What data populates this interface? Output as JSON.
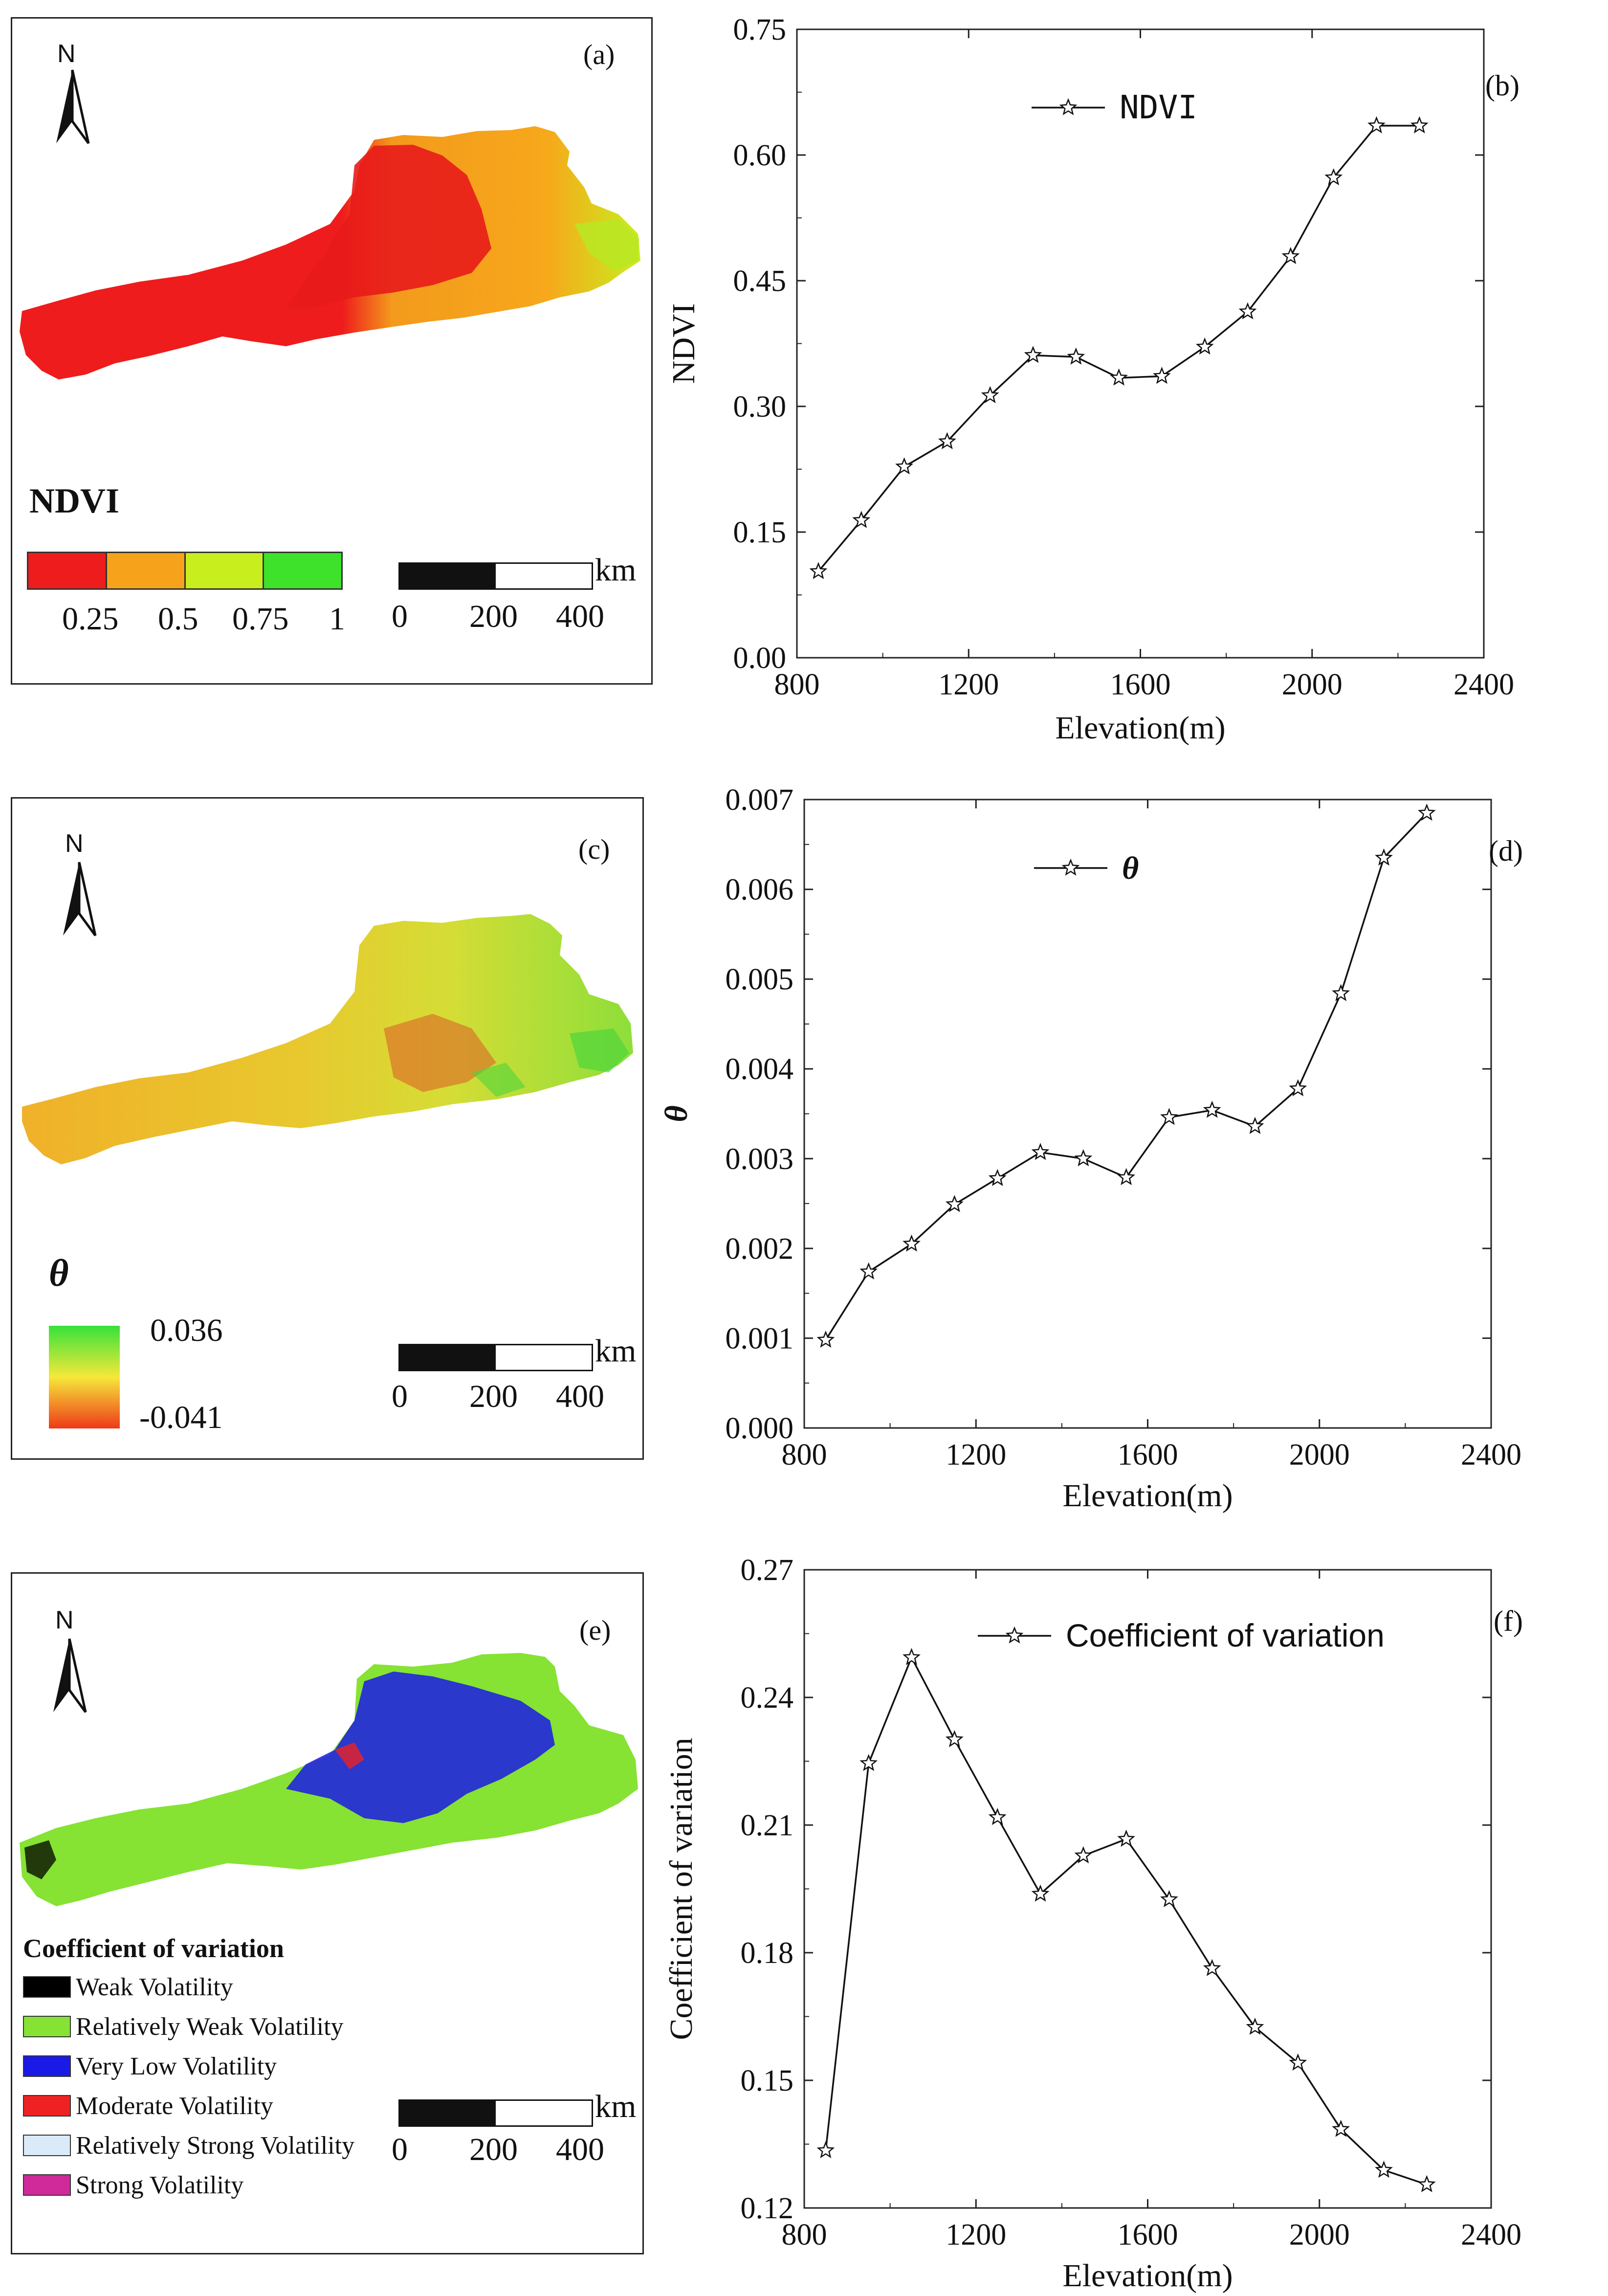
{
  "panels": {
    "a": {
      "label": "(a)",
      "north": "N",
      "legend_title": "NDVI",
      "legend_colors": [
        "#ee1c1c",
        "#f7a21b",
        "#c8ee1e",
        "#3ee22a"
      ],
      "legend_ticks": [
        "0.25",
        "0.5",
        "0.75",
        "1"
      ],
      "scale": {
        "unit": "km",
        "ticks": [
          "0",
          "200",
          "400"
        ]
      }
    },
    "c": {
      "label": "(c)",
      "north": "N",
      "legend_title": "θ",
      "legend_max": "0.036",
      "legend_min": "-0.041",
      "scale": {
        "unit": "km",
        "ticks": [
          "0",
          "200",
          "400"
        ]
      }
    },
    "e": {
      "label": "(e)",
      "north": "N",
      "legend_title": "Coefficient of variation",
      "items": [
        {
          "label": "Weak Volatility",
          "color": "#000000"
        },
        {
          "label": "Relatively Weak Volatility",
          "color": "#86e233"
        },
        {
          "label": "Very Low Volatility",
          "color": "#1a1ae6"
        },
        {
          "label": "Moderate Volatility",
          "color": "#ee2222"
        },
        {
          "label": "Relatively Strong Volatility",
          "color": "#dbeaf8"
        },
        {
          "label": "Strong Volatility",
          "color": "#d02a9a"
        }
      ],
      "scale": {
        "unit": "km",
        "ticks": [
          "0",
          "200",
          "400"
        ]
      }
    }
  },
  "chart_data": [
    {
      "id": "b",
      "panel_label": "(b)",
      "type": "line",
      "xlabel": "Elevation(m)",
      "ylabel": "NDVI",
      "xlim": [
        800,
        2400
      ],
      "ylim": [
        0.0,
        0.75
      ],
      "xticks": [
        "800",
        "1200",
        "1600",
        "2000",
        "2400"
      ],
      "yticks": [
        "0.00",
        "0.15",
        "0.30",
        "0.45",
        "0.60",
        "0.75"
      ],
      "series": [
        {
          "name": "NDVI",
          "x": [
            850,
            950,
            1050,
            1150,
            1250,
            1350,
            1450,
            1550,
            1650,
            1750,
            1850,
            1950,
            2050,
            2150,
            2250
          ],
          "values": [
            0.103,
            0.164,
            0.228,
            0.258,
            0.313,
            0.361,
            0.359,
            0.334,
            0.336,
            0.371,
            0.413,
            0.479,
            0.573,
            0.635,
            0.635
          ]
        }
      ]
    },
    {
      "id": "d",
      "panel_label": "(d)",
      "type": "line",
      "xlabel": "Elevation(m)",
      "ylabel": "θ",
      "xlim": [
        800,
        2400
      ],
      "ylim": [
        0.0,
        0.007
      ],
      "xticks": [
        "800",
        "1200",
        "1600",
        "2000",
        "2400"
      ],
      "yticks": [
        "0.000",
        "0.001",
        "0.002",
        "0.003",
        "0.004",
        "0.005",
        "0.006",
        "0.007"
      ],
      "series": [
        {
          "name": "θ",
          "x": [
            850,
            950,
            1050,
            1150,
            1250,
            1350,
            1450,
            1550,
            1650,
            1750,
            1850,
            1950,
            2050,
            2150,
            2250
          ],
          "values": [
            0.00098,
            0.00174,
            0.00205,
            0.00249,
            0.00278,
            0.00307,
            0.003,
            0.00279,
            0.00346,
            0.00354,
            0.00336,
            0.00378,
            0.00484,
            0.00635,
            0.00685
          ]
        }
      ]
    },
    {
      "id": "f",
      "panel_label": "(f)",
      "type": "line",
      "xlabel": "Elevation(m)",
      "ylabel": "Coefficient of variation",
      "xlim": [
        800,
        2400
      ],
      "ylim": [
        0.12,
        0.27
      ],
      "xticks": [
        "800",
        "1200",
        "1600",
        "2000",
        "2400"
      ],
      "yticks": [
        "0.12",
        "0.15",
        "0.18",
        "0.21",
        "0.24",
        "0.27"
      ],
      "series": [
        {
          "name": "Coefficient of variation",
          "x": [
            850,
            950,
            1050,
            1150,
            1250,
            1350,
            1450,
            1550,
            1650,
            1750,
            1850,
            1950,
            2050,
            2150,
            2250
          ],
          "values": [
            0.1335,
            0.2245,
            0.2494,
            0.2301,
            0.2118,
            0.1938,
            0.2028,
            0.2067,
            0.1925,
            0.1763,
            0.1625,
            0.1541,
            0.1385,
            0.1289,
            0.1255
          ]
        }
      ]
    }
  ]
}
